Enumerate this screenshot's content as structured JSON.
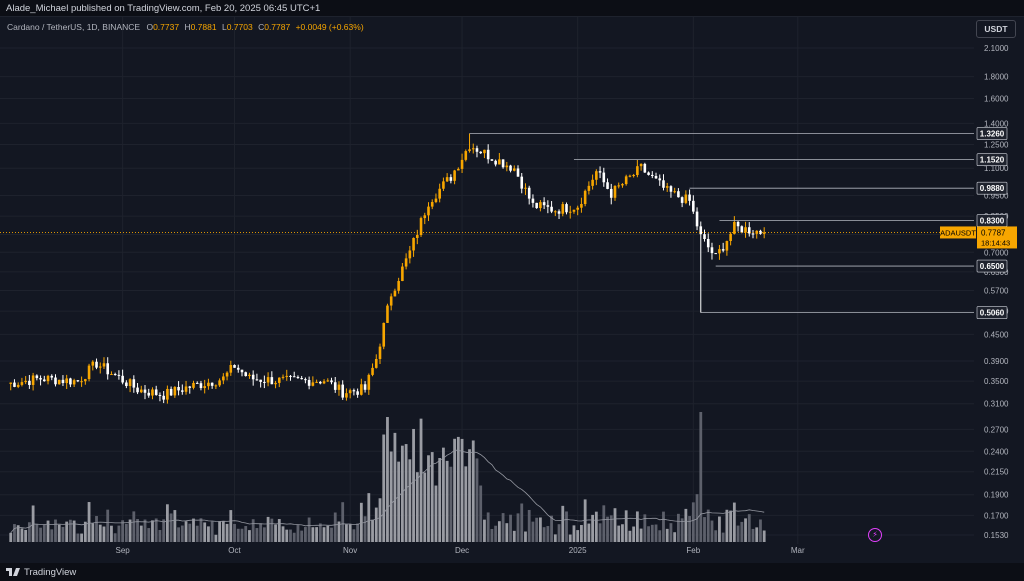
{
  "header": {
    "publisher": "Alade_Michael published on TradingView.com, Feb 20, 2025 06:45 UTC+1"
  },
  "legend": {
    "title": "Cardano / TetherUS, 1D, BINANCE",
    "open_label": "O",
    "open": "0.7737",
    "high_label": "H",
    "high": "0.7881",
    "low_label": "L",
    "low": "0.7703",
    "close_label": "C",
    "close": "0.7787",
    "change": "+0.0049 (+0.63%)"
  },
  "toolbar": {
    "currency": "USDT"
  },
  "footer": {
    "brand": "TradingView",
    "icon": "lightning-icon"
  },
  "colors": {
    "up": "#f7a600",
    "down": "#ffffff",
    "background": "#131722",
    "grid": "#1e222d",
    "level": "#b2b5be",
    "price_tag": "#f7a600"
  },
  "chart_data": {
    "type": "candlestick",
    "symbol": "ADAUSDT",
    "interval": "1D",
    "scale": "log",
    "grid": true,
    "current_price": {
      "label": "ADAUSDT",
      "value": "0.7787",
      "countdown": "18:14:43"
    },
    "y_ticks": [
      2.1,
      1.8,
      1.6,
      1.4,
      1.25,
      1.1,
      0.95,
      0.85,
      0.77,
      0.7,
      0.63,
      0.57,
      0.51,
      0.45,
      0.39,
      0.35,
      0.31,
      0.27,
      0.24,
      0.215,
      0.19,
      0.17,
      0.153
    ],
    "y_tick_labels": [
      "2.1000",
      "1.8000",
      "1.6000",
      "1.4000",
      "1.2500",
      "1.1000",
      "0.9500",
      "0.8500",
      "0.7700",
      "0.7000",
      "0.6300",
      "0.5700",
      "0.5100",
      "0.4500",
      "0.3900",
      "0.3500",
      "0.3100",
      "0.2700",
      "0.2400",
      "0.2150",
      "0.1900",
      "0.1700",
      "0.1530"
    ],
    "x_labels": [
      {
        "label": "Sep",
        "date": "2024-09-01"
      },
      {
        "label": "Oct",
        "date": "2024-10-01"
      },
      {
        "label": "Nov",
        "date": "2024-11-01"
      },
      {
        "label": "Dec",
        "date": "2024-12-01"
      },
      {
        "label": "2025",
        "date": "2025-01-01"
      },
      {
        "label": "Feb",
        "date": "2025-02-01"
      },
      {
        "label": "Mar",
        "date": "2025-03-01"
      }
    ],
    "horizontal_levels": [
      {
        "value": 1.326,
        "label": "1.3260",
        "from": "2024-12-03"
      },
      {
        "value": 1.152,
        "label": "1.1520",
        "from": "2024-12-31"
      },
      {
        "value": 0.988,
        "label": "0.9880",
        "from": "2025-01-31"
      },
      {
        "value": 0.83,
        "label": "0.8300",
        "from": "2025-02-08"
      },
      {
        "value": 0.65,
        "label": "0.6500",
        "from": "2025-02-07"
      },
      {
        "value": 0.506,
        "label": "0.5060",
        "from": "2025-02-03"
      }
    ],
    "series_close": [
      {
        "date": "2024-08-01",
        "close": 0.345
      },
      {
        "date": "2024-08-10",
        "close": 0.355
      },
      {
        "date": "2024-08-20",
        "close": 0.35
      },
      {
        "date": "2024-08-25",
        "close": 0.385
      },
      {
        "date": "2024-08-28",
        "close": 0.37
      },
      {
        "date": "2024-09-05",
        "close": 0.335
      },
      {
        "date": "2024-09-12",
        "close": 0.325
      },
      {
        "date": "2024-09-18",
        "close": 0.338
      },
      {
        "date": "2024-09-28",
        "close": 0.355
      },
      {
        "date": "2024-10-01",
        "close": 0.38
      },
      {
        "date": "2024-10-05",
        "close": 0.355
      },
      {
        "date": "2024-10-15",
        "close": 0.35
      },
      {
        "date": "2024-10-25",
        "close": 0.352
      },
      {
        "date": "2024-10-30",
        "close": 0.33
      },
      {
        "date": "2024-11-05",
        "close": 0.335
      },
      {
        "date": "2024-11-08",
        "close": 0.395
      },
      {
        "date": "2024-11-12",
        "close": 0.56
      },
      {
        "date": "2024-11-17",
        "close": 0.7
      },
      {
        "date": "2024-11-22",
        "close": 0.92
      },
      {
        "date": "2024-11-28",
        "close": 1.05
      },
      {
        "date": "2024-12-03",
        "close": 1.25
      },
      {
        "date": "2024-12-08",
        "close": 1.18
      },
      {
        "date": "2024-12-15",
        "close": 1.1
      },
      {
        "date": "2024-12-20",
        "close": 0.9
      },
      {
        "date": "2024-12-26",
        "close": 0.88
      },
      {
        "date": "2025-01-01",
        "close": 0.9
      },
      {
        "date": "2025-01-06",
        "close": 1.08
      },
      {
        "date": "2025-01-10",
        "close": 0.96
      },
      {
        "date": "2025-01-18",
        "close": 1.1
      },
      {
        "date": "2025-01-25",
        "close": 0.97
      },
      {
        "date": "2025-01-31",
        "close": 0.92
      },
      {
        "date": "2025-02-03",
        "close": 0.76
      },
      {
        "date": "2025-02-07",
        "close": 0.68
      },
      {
        "date": "2025-02-12",
        "close": 0.8
      },
      {
        "date": "2025-02-16",
        "close": 0.79
      },
      {
        "date": "2025-02-20",
        "close": 0.7787
      }
    ],
    "volume_notes": "volume histogram with moving-average line; largest spike on 2025-02-03"
  }
}
